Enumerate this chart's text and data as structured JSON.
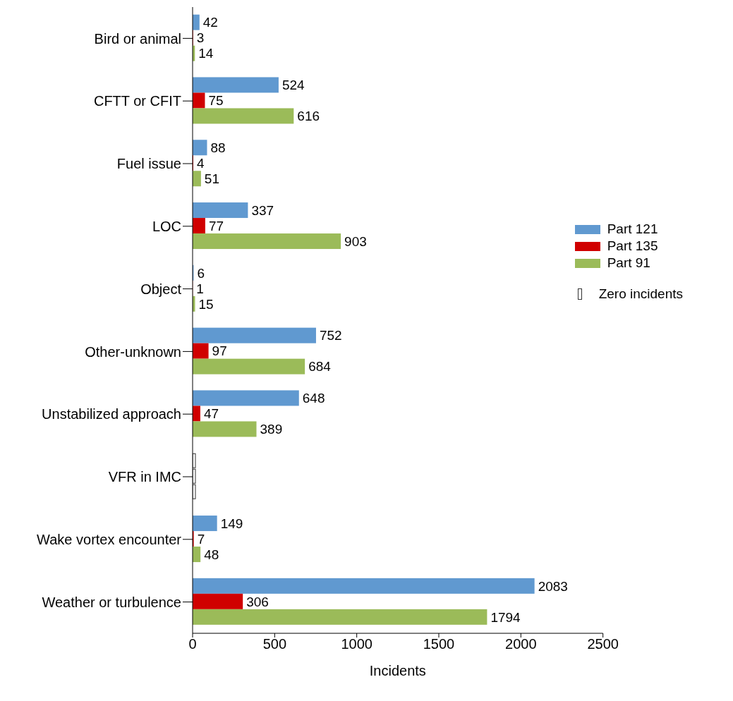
{
  "chart_data": {
    "type": "bar",
    "orientation": "horizontal",
    "xlabel": "Incidents",
    "categories": [
      "Bird or animal",
      "CFTT or CFIT",
      "Fuel issue",
      "LOC",
      "Object",
      "Other-unknown",
      "Unstabilized approach",
      "VFR in IMC",
      "Wake vortex encounter",
      "Weather or turbulence"
    ],
    "series": [
      {
        "name": "Part 121",
        "color": "#6099d0",
        "values": [
          42,
          524,
          88,
          337,
          6,
          752,
          648,
          0,
          149,
          2083
        ],
        "value_labels": [
          "42",
          "524",
          "88",
          "337",
          "6",
          "752",
          "648",
          null,
          "149",
          "2083"
        ]
      },
      {
        "name": "Part 135",
        "color": "#d00000",
        "values": [
          3,
          75,
          4,
          77,
          1,
          97,
          47,
          0,
          7,
          306
        ],
        "value_labels": [
          "3",
          "75",
          "4",
          "77",
          "1",
          "97",
          "47",
          null,
          "7",
          "306"
        ]
      },
      {
        "name": "Part 91",
        "color": "#9bbb59",
        "values": [
          14,
          616,
          51,
          903,
          15,
          684,
          389,
          0,
          48,
          1794
        ],
        "value_labels": [
          "14",
          "616",
          "51",
          "903",
          "15",
          "684",
          "389",
          null,
          "48",
          "1794"
        ]
      }
    ],
    "xlim": [
      0,
      2500
    ],
    "xticks": [
      0,
      500,
      1000,
      1500,
      2000,
      2500
    ],
    "grid": false,
    "legend": "right",
    "annotations": [
      "Zero incidents"
    ]
  }
}
